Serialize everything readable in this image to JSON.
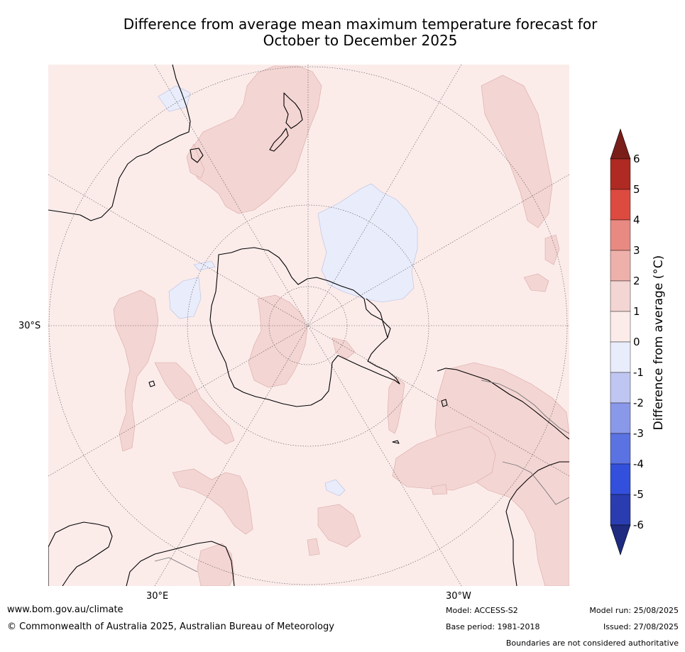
{
  "title": {
    "line1": "Difference from average mean maximum temperature forecast for",
    "line2": "October to December 2025"
  },
  "map": {
    "projection": "polar stereographic (southern hemisphere)",
    "graticule_labels": {
      "lat_left": "30°S",
      "lon_left": "30°E",
      "lon_right": "30°W"
    },
    "colors": {
      "ocean_anomaly_0_1": "#fbecea",
      "anomaly_1_2": "#f3d5d3",
      "anomaly_neg1_0": "#e9ecfa",
      "coastline": "#000000",
      "graticule": "#555555"
    }
  },
  "colorbar": {
    "label": "Difference from average (°C)",
    "ticks": [
      "6",
      "5",
      "4",
      "3",
      "2",
      "1",
      "0",
      "-1",
      "-2",
      "-3",
      "-4",
      "-5",
      "-6"
    ],
    "colors": [
      "#af2a22",
      "#dc4a40",
      "#e88a82",
      "#eeb0aa",
      "#f3d5d3",
      "#fbecea",
      "#e9ecfa",
      "#bfc6f2",
      "#8a98ea",
      "#5b72e2",
      "#3350dc",
      "#2a3db0"
    ],
    "arrow_top_color": "#7a1e1a",
    "arrow_bottom_color": "#1e2b80"
  },
  "footer": {
    "website": "www.bom.gov.au/climate",
    "copyright": "© Commonwealth of Australia 2025, Australian Bureau of Meteorology",
    "model": "Model: ACCESS-S2",
    "base_period": "Base period: 1981-2018",
    "model_run": "Model run: 25/08/2025",
    "issued": "Issued: 27/08/2025",
    "boundaries": "Boundaries are not considered authoritative"
  }
}
